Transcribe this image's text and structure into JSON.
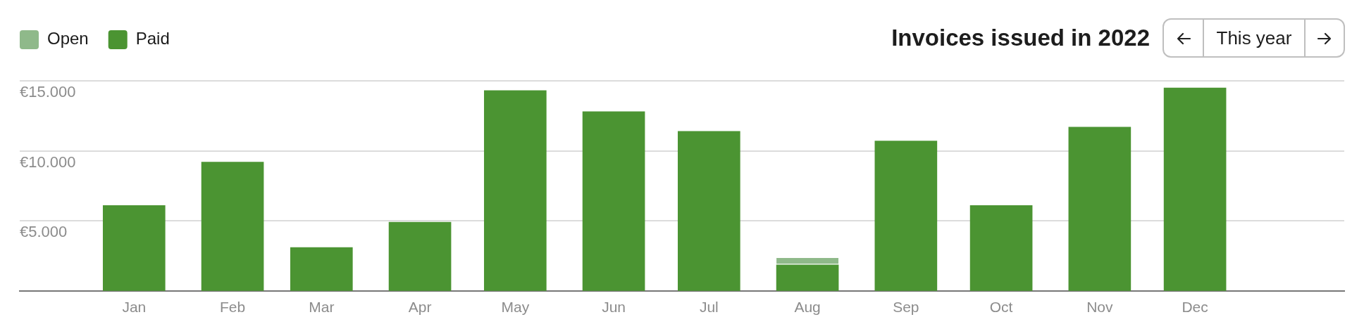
{
  "chart_data": {
    "type": "bar",
    "title": "Invoices issued in 2022",
    "annotations": [
      "This year"
    ],
    "x": [
      "2022-01",
      "2022-02",
      "2022-03",
      "2022-04",
      "2022-05",
      "2022-06",
      "2022-07",
      "2022-08",
      "2022-09",
      "2022-10",
      "2022-11",
      "2022-12"
    ],
    "xlim": [
      "2021-11-26",
      "2023-01-17"
    ],
    "xticks": [
      {
        "value": "2022-01",
        "label": "Jan"
      },
      {
        "value": "2022-02",
        "label": "Feb"
      },
      {
        "value": "2022-03",
        "label": "Mar"
      },
      {
        "value": "2022-04",
        "label": "Apr"
      },
      {
        "value": "2022-05",
        "label": "May"
      },
      {
        "value": "2022-06",
        "label": "Jun"
      },
      {
        "value": "2022-07",
        "label": "Jul"
      },
      {
        "value": "2022-08",
        "label": "Aug"
      },
      {
        "value": "2022-09",
        "label": "Sep"
      },
      {
        "value": "2022-10",
        "label": "Oct"
      },
      {
        "value": "2022-11",
        "label": "Nov"
      },
      {
        "value": "2022-12",
        "label": "Dec"
      }
    ],
    "ylim": [
      0,
      15000
    ],
    "yticks": [
      {
        "value": 5000,
        "label": "€5.000"
      },
      {
        "value": 10000,
        "label": "€10.000"
      },
      {
        "value": 15000,
        "label": "€15.000"
      }
    ],
    "series": [
      {
        "name": "Paid",
        "color": "#4b9432",
        "values": [
          6100,
          9200,
          3100,
          4900,
          14300,
          12800,
          11400,
          1850,
          10700,
          6100,
          11700,
          14500
        ]
      },
      {
        "name": "Open",
        "color": "#8fb98a",
        "values": [
          null,
          null,
          null,
          null,
          null,
          null,
          null,
          500,
          null,
          null,
          null,
          null
        ]
      }
    ],
    "stacked": true,
    "grid": "y",
    "legend": "top left"
  }
}
